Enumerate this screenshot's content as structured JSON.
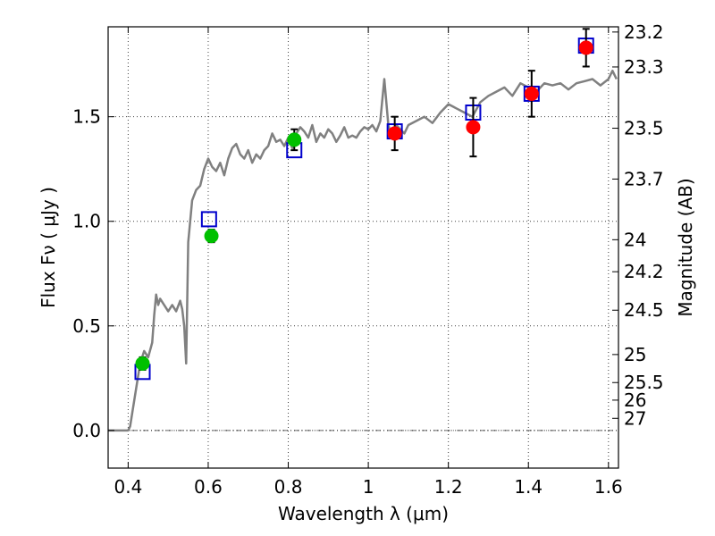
{
  "chart_data": {
    "type": "line",
    "xlabel": "Wavelength  λ (μm)",
    "ylabel": "Flux  Fν  ( μJy )",
    "ylabel_right": "Magnitude (AB)",
    "xlim": [
      0.35,
      1.625
    ],
    "ylim": [
      -0.18,
      1.93
    ],
    "grid": true,
    "x_ticks": [
      0.4,
      0.6,
      0.8,
      1.0,
      1.2,
      1.4,
      1.6
    ],
    "x_tick_labels": [
      "0.4",
      "0.6",
      "0.8",
      "1",
      "1.2",
      "1.4",
      "1.6"
    ],
    "y_ticks": [
      0.0,
      0.5,
      1.0,
      1.5
    ],
    "y_tick_labels": [
      "0.0",
      "0.5",
      "1.0",
      "1.5"
    ],
    "right_axis": {
      "ticks": [
        {
          "label": "23.2",
          "flux": 1.905
        },
        {
          "label": "23.3",
          "flux": 1.738
        },
        {
          "label": "23.5",
          "flux": 1.445
        },
        {
          "label": "23.7",
          "flux": 1.202
        },
        {
          "label": "24",
          "flux": 0.912
        },
        {
          "label": "24.2",
          "flux": 0.759
        },
        {
          "label": "24.5",
          "flux": 0.575
        },
        {
          "label": "25",
          "flux": 0.363
        },
        {
          "label": "25.5",
          "flux": 0.229
        },
        {
          "label": "26",
          "flux": 0.145
        },
        {
          "label": "27",
          "flux": 0.058
        }
      ]
    },
    "series": [
      {
        "kind": "line",
        "color": "#808080",
        "x": [
          0.35,
          0.4,
          0.405,
          0.42,
          0.43,
          0.44,
          0.45,
          0.46,
          0.465,
          0.47,
          0.475,
          0.48,
          0.49,
          0.5,
          0.51,
          0.52,
          0.53,
          0.535,
          0.54,
          0.545,
          0.55,
          0.56,
          0.57,
          0.58,
          0.59,
          0.6,
          0.61,
          0.62,
          0.63,
          0.64,
          0.65,
          0.66,
          0.67,
          0.68,
          0.69,
          0.7,
          0.71,
          0.72,
          0.73,
          0.74,
          0.75,
          0.76,
          0.77,
          0.78,
          0.79,
          0.8,
          0.81,
          0.82,
          0.83,
          0.84,
          0.85,
          0.86,
          0.87,
          0.88,
          0.89,
          0.9,
          0.91,
          0.92,
          0.93,
          0.94,
          0.95,
          0.96,
          0.97,
          0.98,
          0.99,
          1.0,
          1.01,
          1.02,
          1.03,
          1.04,
          1.05,
          1.06,
          1.07,
          1.08,
          1.09,
          1.1,
          1.12,
          1.14,
          1.16,
          1.18,
          1.2,
          1.22,
          1.24,
          1.26,
          1.28,
          1.3,
          1.32,
          1.34,
          1.36,
          1.38,
          1.4,
          1.42,
          1.44,
          1.46,
          1.48,
          1.5,
          1.52,
          1.54,
          1.56,
          1.58,
          1.6,
          1.61,
          1.62
        ],
        "y": [
          0.0,
          0.0,
          0.02,
          0.2,
          0.32,
          0.38,
          0.35,
          0.42,
          0.55,
          0.65,
          0.6,
          0.63,
          0.6,
          0.57,
          0.6,
          0.57,
          0.62,
          0.58,
          0.5,
          0.32,
          0.9,
          1.1,
          1.15,
          1.17,
          1.25,
          1.3,
          1.26,
          1.24,
          1.28,
          1.22,
          1.3,
          1.35,
          1.37,
          1.32,
          1.3,
          1.34,
          1.28,
          1.32,
          1.3,
          1.34,
          1.36,
          1.42,
          1.38,
          1.39,
          1.36,
          1.4,
          1.35,
          1.42,
          1.45,
          1.43,
          1.4,
          1.46,
          1.38,
          1.42,
          1.4,
          1.44,
          1.42,
          1.38,
          1.41,
          1.45,
          1.4,
          1.41,
          1.4,
          1.43,
          1.45,
          1.44,
          1.46,
          1.43,
          1.48,
          1.68,
          1.46,
          1.4,
          1.46,
          1.44,
          1.42,
          1.46,
          1.48,
          1.5,
          1.47,
          1.52,
          1.56,
          1.54,
          1.52,
          1.5,
          1.57,
          1.6,
          1.62,
          1.64,
          1.6,
          1.66,
          1.64,
          1.62,
          1.66,
          1.65,
          1.66,
          1.63,
          1.66,
          1.67,
          1.68,
          1.65,
          1.68,
          1.72,
          1.68
        ]
      },
      {
        "kind": "open-square",
        "color": "#0000cc",
        "x": [
          0.436,
          0.602,
          0.815,
          1.066,
          1.262,
          1.408,
          1.544
        ],
        "y": [
          0.28,
          1.01,
          1.34,
          1.43,
          1.52,
          1.61,
          1.84
        ]
      },
      {
        "kind": "point",
        "color": "#00c000",
        "x": [
          0.436,
          0.608,
          0.815
        ],
        "y": [
          0.32,
          0.93,
          1.39
        ],
        "err": [
          0.03,
          0.03,
          0.05
        ]
      },
      {
        "kind": "point",
        "color": "#ff0000",
        "x": [
          1.066,
          1.262,
          1.408,
          1.544
        ],
        "y": [
          1.42,
          1.45,
          1.61,
          1.83
        ],
        "err": [
          0.08,
          0.14,
          0.11,
          0.09
        ]
      }
    ]
  }
}
